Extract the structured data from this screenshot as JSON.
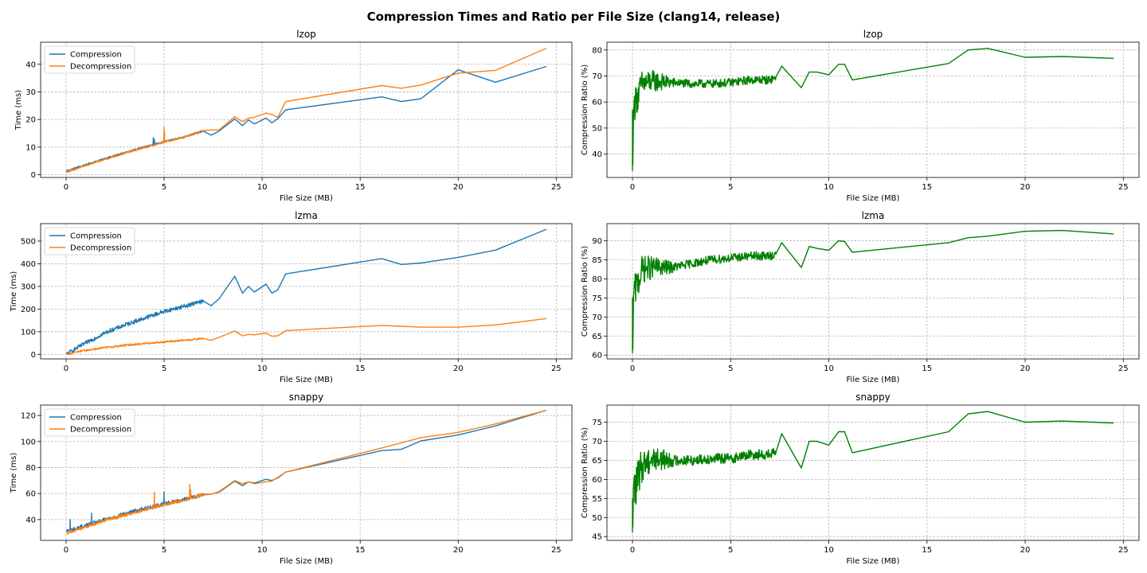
{
  "figure": {
    "title": "Compression Times and Ratio per File Size (clang14, release)"
  },
  "chart_data": [
    {
      "type": "line",
      "title": "lzop",
      "xlabel": "File Size (MB)",
      "ylabel": "Time (ms)",
      "xlim": [
        -1.3,
        25.8
      ],
      "ylim": [
        -1,
        48
      ],
      "xticks": [
        0,
        5,
        10,
        15,
        20,
        25
      ],
      "yticks": [
        0,
        10,
        20,
        30,
        40
      ],
      "grid": true,
      "legend": "upper-left",
      "noise": {
        "start": 0.05,
        "end": 7.2,
        "step": 0.02,
        "amp": [
          0.25,
          0.3
        ],
        "spikes": [
          [
            4.45,
            13.4,
            0
          ],
          [
            4.5,
            12.8,
            0
          ],
          [
            5.0,
            17.2,
            1
          ],
          [
            5.02,
            15.5,
            1
          ]
        ]
      },
      "series": [
        {
          "name": "Compression",
          "color": "#1f77b4",
          "x": [
            0,
            0.5,
            1,
            2,
            3,
            4,
            5,
            6,
            7,
            7.4,
            7.8,
            8.6,
            9.0,
            9.3,
            9.6,
            10.2,
            10.5,
            10.8,
            11.2,
            16.1,
            17.1,
            18.1,
            20.0,
            21.9,
            24.5
          ],
          "y": [
            1.3,
            2.5,
            3.6,
            5.9,
            8.0,
            10.1,
            12.0,
            13.6,
            15.8,
            14.3,
            15.8,
            20.2,
            17.8,
            19.8,
            18.4,
            20.5,
            18.8,
            20.3,
            23.5,
            28.2,
            26.5,
            27.5,
            38.0,
            33.5,
            39.2
          ]
        },
        {
          "name": "Decompression",
          "color": "#ff7f0e",
          "x": [
            0,
            0.5,
            1,
            2,
            3,
            4,
            5,
            6,
            7,
            7.4,
            7.8,
            8.6,
            9.0,
            9.3,
            9.6,
            10.2,
            10.5,
            10.8,
            11.2,
            16.1,
            17.1,
            18.1,
            20.0,
            21.9,
            24.5
          ],
          "y": [
            0.9,
            2.1,
            3.3,
            5.6,
            7.8,
            9.8,
            11.8,
            13.6,
            16.0,
            16.2,
            16.2,
            21.0,
            19.2,
            20.5,
            20.8,
            22.3,
            21.8,
            20.8,
            26.5,
            32.3,
            31.3,
            32.5,
            36.8,
            37.8,
            45.8
          ]
        }
      ]
    },
    {
      "type": "line",
      "title": "lzop",
      "xlabel": "File Size (MB)",
      "ylabel": "Compression Ratio (%)",
      "xlim": [
        -1.3,
        25.8
      ],
      "ylim": [
        31,
        83
      ],
      "xticks": [
        0,
        5,
        10,
        15,
        20,
        25
      ],
      "yticks": [
        40,
        50,
        60,
        70,
        80
      ],
      "grid": true,
      "noise": {
        "start": 0.1,
        "end": 7.3,
        "step": 0.02,
        "amp": [
          6.5,
          2.0
        ],
        "spikes": [
          [
            0.0,
            33.5,
            0
          ],
          [
            0.02,
            36.0,
            0
          ],
          [
            0.05,
            55.0,
            0
          ]
        ]
      },
      "series": [
        {
          "name": "",
          "color": "#008000",
          "x": [
            0,
            0.5,
            1,
            2,
            3,
            4,
            5,
            6,
            7,
            7.3,
            7.6,
            8.6,
            9.0,
            9.4,
            10.0,
            10.5,
            10.8,
            11.2,
            16.1,
            17.1,
            18.1,
            20.0,
            21.9,
            24.5
          ],
          "y": [
            57.0,
            67.0,
            68.0,
            67.5,
            67.0,
            67.0,
            67.5,
            68.5,
            68.5,
            69.5,
            73.8,
            65.5,
            71.5,
            71.5,
            70.5,
            74.5,
            74.5,
            68.5,
            74.8,
            80.0,
            80.6,
            77.2,
            77.5,
            76.8
          ]
        }
      ]
    },
    {
      "type": "line",
      "title": "lzma",
      "xlabel": "File Size (MB)",
      "ylabel": "Time (ms)",
      "xlim": [
        -1.3,
        25.8
      ],
      "ylim": [
        -20,
        577
      ],
      "xticks": [
        0,
        5,
        10,
        15,
        20,
        25
      ],
      "yticks": [
        0,
        100,
        200,
        300,
        400,
        500
      ],
      "grid": true,
      "legend": "upper-left",
      "noise": {
        "start": 0.05,
        "end": 7.2,
        "step": 0.02,
        "amp": [
          9,
          4
        ],
        "spikes": []
      },
      "series": [
        {
          "name": "Compression",
          "color": "#1f77b4",
          "x": [
            0,
            0.5,
            1,
            2,
            3,
            4,
            5,
            6,
            7,
            7.4,
            7.8,
            8.6,
            9.0,
            9.3,
            9.6,
            10.2,
            10.5,
            10.8,
            11.2,
            16.1,
            17.1,
            18.1,
            20.0,
            21.9,
            24.5
          ],
          "y": [
            0,
            26,
            50,
            96,
            130,
            160,
            190,
            212,
            235,
            215,
            245,
            345,
            270,
            300,
            275,
            310,
            270,
            285,
            355,
            423,
            397,
            403,
            428,
            460,
            552
          ]
        },
        {
          "name": "Decompression",
          "color": "#ff7f0e",
          "x": [
            0,
            0.5,
            1,
            2,
            3,
            4,
            5,
            6,
            7,
            7.4,
            7.8,
            8.6,
            9.0,
            9.3,
            9.6,
            10.2,
            10.5,
            10.8,
            11.2,
            16.1,
            17.1,
            18.1,
            20.0,
            21.9,
            24.5
          ],
          "y": [
            0,
            10,
            18,
            30,
            40,
            48,
            55,
            62,
            70,
            62,
            75,
            103,
            82,
            88,
            86,
            94,
            80,
            82,
            105,
            128,
            124,
            120,
            120,
            130,
            158
          ]
        }
      ]
    },
    {
      "type": "line",
      "title": "lzma",
      "xlabel": "File Size (MB)",
      "ylabel": "Compression Ratio (%)",
      "xlim": [
        -1.3,
        25.8
      ],
      "ylim": [
        59,
        94.5
      ],
      "xticks": [
        0,
        5,
        10,
        15,
        20,
        25
      ],
      "yticks": [
        60,
        65,
        70,
        75,
        80,
        85,
        90
      ],
      "grid": true,
      "noise": {
        "start": 0.1,
        "end": 7.3,
        "step": 0.02,
        "amp": [
          4.5,
          1.5
        ],
        "spikes": [
          [
            0.0,
            60.5,
            0
          ],
          [
            0.02,
            61.5,
            0
          ],
          [
            0.05,
            75.0,
            0
          ]
        ]
      },
      "series": [
        {
          "name": "",
          "color": "#008000",
          "x": [
            0,
            0.5,
            1,
            2,
            3,
            4,
            5,
            6,
            7,
            7.3,
            7.6,
            8.6,
            9.0,
            9.4,
            10.0,
            10.5,
            10.8,
            11.2,
            16.1,
            17.1,
            18.1,
            20.0,
            21.9,
            24.5
          ],
          "y": [
            75.0,
            82.5,
            83.0,
            83.0,
            84.0,
            85.0,
            85.5,
            86.0,
            86.0,
            86.5,
            89.5,
            83.0,
            88.5,
            88.0,
            87.5,
            90.0,
            89.8,
            87.0,
            89.5,
            90.8,
            91.2,
            92.5,
            92.7,
            91.8
          ]
        }
      ]
    },
    {
      "type": "line",
      "title": "snappy",
      "xlabel": "File Size (MB)",
      "ylabel": "Time (ms)",
      "xlim": [
        -1.3,
        25.8
      ],
      "ylim": [
        24,
        128
      ],
      "xticks": [
        0,
        5,
        10,
        15,
        20,
        25
      ],
      "yticks": [
        40,
        60,
        80,
        100,
        120
      ],
      "grid": true,
      "legend": "upper-left",
      "noise": {
        "start": 0.05,
        "end": 7.2,
        "step": 0.02,
        "amp": [
          1.5,
          1.2
        ],
        "spikes": [
          [
            0.2,
            40.0,
            0
          ],
          [
            1.3,
            45.0,
            0
          ],
          [
            4.5,
            61.0,
            1
          ],
          [
            5.0,
            61.5,
            0
          ],
          [
            6.3,
            67.0,
            1
          ],
          [
            6.35,
            63.0,
            1
          ]
        ]
      },
      "series": [
        {
          "name": "Compression",
          "color": "#1f77b4",
          "x": [
            0,
            0.5,
            1,
            2,
            3,
            4,
            5,
            6,
            7,
            7.4,
            7.8,
            8.6,
            9.0,
            9.3,
            9.6,
            10.2,
            10.5,
            10.8,
            11.2,
            16.1,
            17.1,
            18.1,
            20.0,
            21.9,
            24.5
          ],
          "y": [
            31.0,
            33.0,
            35.5,
            40.0,
            44.5,
            48.5,
            52.0,
            55.5,
            59.0,
            59.5,
            61.0,
            69.5,
            66.0,
            69.0,
            68.0,
            71.0,
            70.0,
            72.0,
            76.5,
            93.0,
            94.0,
            100.5,
            105.0,
            112.0,
            124.0
          ]
        },
        {
          "name": "Decompression",
          "color": "#ff7f0e",
          "x": [
            0,
            0.5,
            1,
            2,
            3,
            4,
            5,
            6,
            7,
            7.4,
            7.8,
            8.6,
            9.0,
            9.3,
            9.6,
            10.2,
            10.5,
            10.8,
            11.2,
            16.1,
            17.1,
            18.1,
            20.0,
            21.9,
            24.5
          ],
          "y": [
            29.5,
            32.0,
            34.5,
            39.5,
            43.5,
            47.5,
            51.5,
            55.0,
            59.5,
            59.5,
            61.5,
            70.0,
            67.5,
            69.0,
            67.5,
            69.0,
            69.5,
            72.5,
            76.5,
            95.0,
            99.0,
            103.0,
            107.0,
            113.5,
            124.0
          ]
        }
      ]
    },
    {
      "type": "line",
      "title": "snappy",
      "xlabel": "File Size (MB)",
      "ylabel": "Compression Ratio (%)",
      "xlim": [
        -1.3,
        25.8
      ],
      "ylim": [
        44,
        79.5
      ],
      "xticks": [
        0,
        5,
        10,
        15,
        20,
        25
      ],
      "yticks": [
        45,
        50,
        55,
        60,
        65,
        70,
        75
      ],
      "grid": true,
      "noise": {
        "start": 0.1,
        "end": 7.3,
        "step": 0.02,
        "amp": [
          5.5,
          1.8
        ],
        "spikes": [
          [
            0.0,
            46.0,
            0
          ],
          [
            0.02,
            47.5,
            0
          ],
          [
            0.05,
            58.0,
            0
          ]
        ]
      },
      "series": [
        {
          "name": "",
          "color": "#008000",
          "x": [
            0,
            0.5,
            1,
            2,
            3,
            4,
            5,
            6,
            7,
            7.3,
            7.6,
            8.6,
            9.0,
            9.4,
            10.0,
            10.5,
            10.8,
            11.2,
            16.1,
            17.1,
            18.1,
            20.0,
            21.9,
            24.5
          ],
          "y": [
            55.0,
            64.0,
            65.5,
            65.0,
            65.0,
            65.5,
            65.5,
            66.5,
            66.5,
            67.0,
            72.0,
            63.0,
            70.0,
            70.0,
            69.0,
            72.5,
            72.5,
            67.0,
            72.5,
            77.2,
            77.8,
            75.0,
            75.3,
            74.8
          ]
        }
      ]
    }
  ]
}
